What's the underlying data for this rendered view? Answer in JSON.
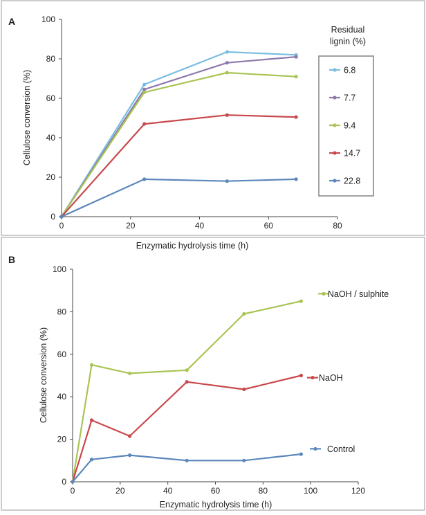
{
  "chart_data": [
    {
      "panel": "A",
      "type": "line",
      "xlabel": "Enzymatic hydrolysis time (h)",
      "ylabel": "Cellulose conversion (%)",
      "xlim": [
        0,
        80
      ],
      "ylim": [
        0,
        100
      ],
      "xticks": [
        0,
        20,
        40,
        60,
        80
      ],
      "yticks": [
        0,
        20,
        40,
        60,
        80,
        100
      ],
      "grid": false,
      "legend_title": "Residual lignin (%)",
      "legend_title_lines": [
        "Residual",
        "lignin (%)"
      ],
      "legend_position": "right",
      "x": [
        0,
        24,
        48,
        68
      ],
      "series": [
        {
          "name": "6.8",
          "color": "#79bde0",
          "values": [
            0,
            67,
            83.5,
            82
          ]
        },
        {
          "name": "7.7",
          "color": "#8e78ad",
          "values": [
            0,
            64.5,
            78,
            81
          ]
        },
        {
          "name": "9.4",
          "color": "#a9c455",
          "values": [
            0,
            63,
            73,
            71
          ]
        },
        {
          "name": "14.7",
          "color": "#c8484c",
          "values": [
            0,
            47,
            51.5,
            50.5
          ]
        },
        {
          "name": "22.8",
          "color": "#5c87bb",
          "values": [
            0,
            19,
            18,
            19
          ]
        }
      ]
    },
    {
      "panel": "B",
      "type": "line",
      "xlabel": "Enzymatic hydrolysis time (h)",
      "ylabel": "Cellulose conversion (%)",
      "xlim": [
        0,
        120
      ],
      "ylim": [
        0,
        100
      ],
      "xticks": [
        0,
        20,
        40,
        60,
        80,
        100,
        120
      ],
      "yticks": [
        0,
        20,
        40,
        60,
        80,
        100
      ],
      "grid": false,
      "legend_position": "inline-right",
      "x": [
        0,
        8,
        24,
        48,
        72,
        96
      ],
      "series": [
        {
          "name": "NaOH / sulphite",
          "color": "#a9c455",
          "values": [
            0,
            55,
            51,
            52.5,
            79,
            85
          ]
        },
        {
          "name": "NaOH",
          "color": "#c8484c",
          "values": [
            0,
            29,
            21.5,
            47,
            43.5,
            50
          ]
        },
        {
          "name": "Control",
          "color": "#5c87bb",
          "values": [
            0,
            10.5,
            12.5,
            10,
            10,
            13
          ]
        }
      ]
    }
  ]
}
